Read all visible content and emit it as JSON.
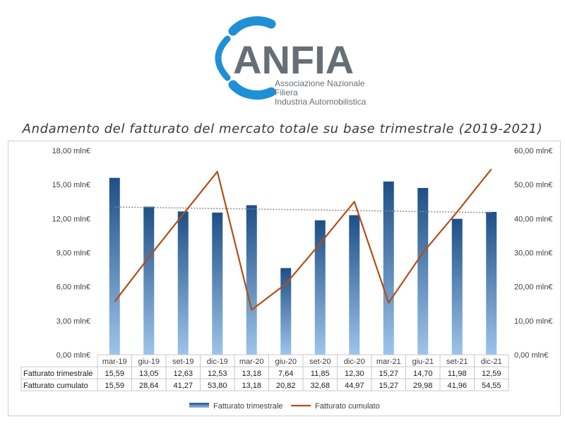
{
  "logo": {
    "name": "ANFIA",
    "subtitle_lines": [
      "Associazione Nazionale",
      "Filiera",
      "Industria Automobilistica"
    ]
  },
  "colors": {
    "logo_blue": "#1f8fd6",
    "logo_gray": "#666f76",
    "bar_top": "#1e4f86",
    "bar_bottom": "#9dc4ea",
    "line": "#b14f17",
    "trend": "#8c8c8c"
  },
  "chart_data": {
    "type": "bar",
    "title": "Andamento del fatturato del mercato totale su base trimestrale (2019-2021)",
    "categories": [
      "mar-19",
      "giu-19",
      "set-19",
      "dic-19",
      "mar-20",
      "giu-20",
      "set-20",
      "dic-20",
      "mar-21",
      "giu-21",
      "set-21",
      "dic-21"
    ],
    "y_left": {
      "min": 0,
      "max": 18,
      "step": 3,
      "tick_labels": [
        "0,00 mln€",
        "3,00 mln€",
        "6,00 mln€",
        "9,00 mln€",
        "12,00 mln€",
        "15,00 mln€",
        "18,00 mln€"
      ]
    },
    "y_right": {
      "min": 0,
      "max": 60,
      "step": 10,
      "tick_labels": [
        "0,00 mln€",
        "10,00 mln€",
        "20,00 mln€",
        "30,00 mln€",
        "40,00 mln€",
        "50,00 mln€",
        "60,00 mln€"
      ]
    },
    "series": [
      {
        "name": "Fatturato trimestrale",
        "type": "bar",
        "axis": "left",
        "values": [
          15.59,
          13.05,
          12.63,
          12.53,
          13.18,
          7.64,
          11.85,
          12.3,
          15.27,
          14.7,
          11.98,
          12.59
        ],
        "labels": [
          "15,59",
          "13,05",
          "12,63",
          "12,53",
          "13,18",
          "7,64",
          "11,85",
          "12,30",
          "15,27",
          "14,70",
          "11,98",
          "12,59"
        ]
      },
      {
        "name": "Fatturato cumulato",
        "type": "line",
        "axis": "right",
        "values": [
          15.59,
          28.64,
          41.27,
          53.8,
          13.18,
          20.82,
          32.68,
          44.97,
          15.27,
          29.98,
          41.96,
          54.55
        ],
        "labels": [
          "15,59",
          "28,64",
          "41,27",
          "53,80",
          "13,18",
          "20,82",
          "32,68",
          "44,97",
          "15,27",
          "29,98",
          "41,96",
          "54,55"
        ]
      }
    ],
    "trendline": {
      "of": "Fatturato trimestrale",
      "type": "linear",
      "style": "dotted"
    },
    "grid": false,
    "data_table": true,
    "legend": "bottom"
  }
}
